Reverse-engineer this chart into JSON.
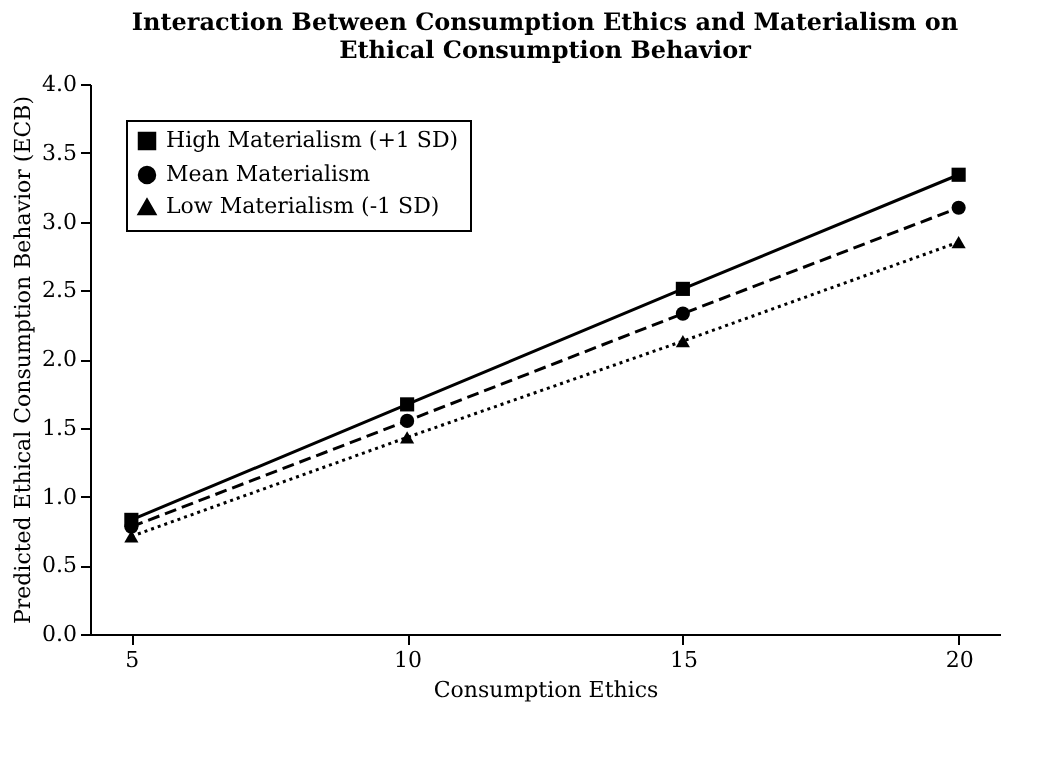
{
  "chart_data": {
    "type": "line",
    "title": [
      "Interaction Between Consumption Ethics and Materialism on",
      "Ethical Consumption Behavior"
    ],
    "xlabel": "Consumption Ethics",
    "ylabel": "Predicted Ethical Consumption Behavior (ECB)",
    "x": [
      5,
      10,
      15,
      20
    ],
    "series": [
      {
        "name": "High Materialism (+1 SD)",
        "color": "#000000",
        "values": [
          0.83,
          1.67,
          2.51,
          3.34
        ],
        "marker": "square",
        "line_style": "solid"
      },
      {
        "name": "Mean Materialism",
        "color": "#000000",
        "values": [
          0.78,
          1.55,
          2.33,
          3.1
        ],
        "marker": "circle",
        "line_style": "dashed"
      },
      {
        "name": "Low Materialism (-1 SD)",
        "color": "#000000",
        "values": [
          0.71,
          1.43,
          2.13,
          2.85
        ],
        "marker": "triangle",
        "line_style": "dotted"
      }
    ],
    "xlim": [
      4.25,
      20.75
    ],
    "xticks": [
      5,
      10,
      15,
      20
    ],
    "ylim": [
      0,
      4
    ],
    "yticks": [
      {
        "value": 0,
        "label": "0.0"
      },
      0.5,
      {
        "value": 1,
        "label": "1.0"
      },
      1.5,
      {
        "value": 2,
        "label": "2.0"
      },
      2.5,
      {
        "value": 3,
        "label": "3.0"
      },
      3.5,
      {
        "value": 4,
        "label": "4.0"
      }
    ],
    "grid": false,
    "legend": "top left"
  }
}
